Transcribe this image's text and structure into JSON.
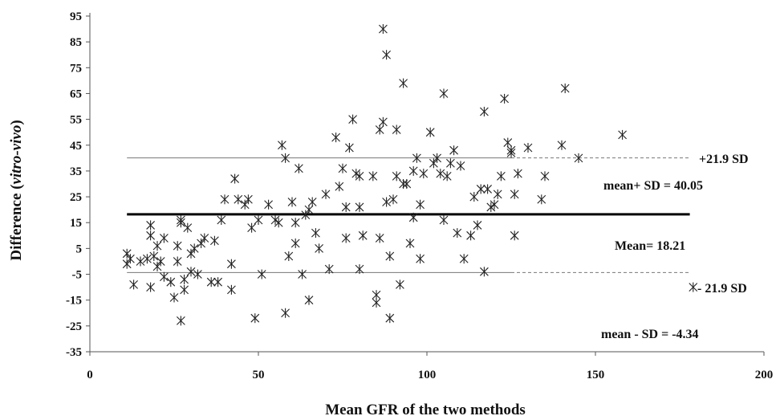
{
  "chart_data": {
    "type": "scatter",
    "title": "",
    "xlabel": "Mean GFR of the two methods",
    "ylabel_prefix": "Difference (",
    "ylabel_italic": "vitro-vivo",
    "ylabel_suffix": ")",
    "xlim": [
      0,
      200
    ],
    "ylim": [
      -35,
      95
    ],
    "xticks": [
      0,
      50,
      100,
      150,
      200
    ],
    "yticks": [
      95,
      85,
      75,
      65,
      55,
      45,
      35,
      25,
      15,
      5,
      -5,
      -15,
      -25,
      -35
    ],
    "grid": false,
    "legend": "none",
    "lines": [
      {
        "name": "upper",
        "y": 40.05,
        "x_from": 11,
        "x_solid_to": 125,
        "x_to": 178,
        "style": "thin"
      },
      {
        "name": "mean",
        "y": 18.21,
        "x_from": 11,
        "x_to": 178,
        "style": "bold"
      },
      {
        "name": "lower",
        "y": -4.34,
        "x_from": 11,
        "x_solid_to": 125,
        "x_to": 178,
        "style": "thin"
      }
    ],
    "annotations": {
      "upper_sd": "+21.9  SD",
      "upper_value": "mean+ SD = 40.05",
      "mean_value": "Mean= 18.21",
      "lower_sd": "- 21.9  SD",
      "lower_value": "mean - SD = -4.34"
    },
    "points": [
      [
        11,
        3
      ],
      [
        11,
        -1
      ],
      [
        12,
        1
      ],
      [
        13,
        -9
      ],
      [
        15,
        0
      ],
      [
        17,
        1
      ],
      [
        18,
        -10
      ],
      [
        18,
        14
      ],
      [
        18,
        10
      ],
      [
        19,
        2
      ],
      [
        20,
        6
      ],
      [
        20,
        -2
      ],
      [
        21,
        0
      ],
      [
        22,
        -6
      ],
      [
        22,
        9
      ],
      [
        24,
        -8
      ],
      [
        25,
        -14
      ],
      [
        26,
        0
      ],
      [
        26,
        6
      ],
      [
        27,
        -23
      ],
      [
        27,
        15
      ],
      [
        27,
        16
      ],
      [
        28,
        -7
      ],
      [
        28,
        -11
      ],
      [
        29,
        13
      ],
      [
        30,
        -4
      ],
      [
        30,
        3
      ],
      [
        31,
        5
      ],
      [
        32,
        -5
      ],
      [
        33,
        7
      ],
      [
        34,
        9
      ],
      [
        36,
        -8
      ],
      [
        37,
        8
      ],
      [
        38,
        -8
      ],
      [
        39,
        16
      ],
      [
        40,
        24
      ],
      [
        42,
        -1
      ],
      [
        42,
        -11
      ],
      [
        43,
        32
      ],
      [
        44,
        24
      ],
      [
        46,
        22
      ],
      [
        47,
        24
      ],
      [
        48,
        13
      ],
      [
        49,
        -22
      ],
      [
        50,
        16
      ],
      [
        51,
        -5
      ],
      [
        53,
        22
      ],
      [
        55,
        16
      ],
      [
        56,
        15
      ],
      [
        57,
        45
      ],
      [
        58,
        40
      ],
      [
        58,
        -20
      ],
      [
        59,
        2
      ],
      [
        60,
        23
      ],
      [
        61,
        15
      ],
      [
        61,
        7
      ],
      [
        62,
        36
      ],
      [
        63,
        -5
      ],
      [
        64,
        18
      ],
      [
        65,
        -15
      ],
      [
        65,
        20
      ],
      [
        66,
        23
      ],
      [
        67,
        11
      ],
      [
        68,
        5
      ],
      [
        70,
        26
      ],
      [
        71,
        -3
      ],
      [
        73,
        48
      ],
      [
        74,
        29
      ],
      [
        75,
        36
      ],
      [
        76,
        21
      ],
      [
        76,
        9
      ],
      [
        77,
        44
      ],
      [
        78,
        55
      ],
      [
        79,
        34
      ],
      [
        80,
        21
      ],
      [
        80,
        33
      ],
      [
        80,
        -3
      ],
      [
        81,
        10
      ],
      [
        84,
        33
      ],
      [
        85,
        -13
      ],
      [
        85,
        -16
      ],
      [
        86,
        51
      ],
      [
        86,
        9
      ],
      [
        87,
        90
      ],
      [
        87,
        54
      ],
      [
        88,
        80
      ],
      [
        88,
        23
      ],
      [
        89,
        -22
      ],
      [
        89,
        2
      ],
      [
        90,
        24
      ],
      [
        91,
        33
      ],
      [
        91,
        51
      ],
      [
        92,
        -9
      ],
      [
        93,
        69
      ],
      [
        93,
        30
      ],
      [
        94,
        30
      ],
      [
        95,
        7
      ],
      [
        96,
        17
      ],
      [
        96,
        35
      ],
      [
        97,
        40
      ],
      [
        98,
        1
      ],
      [
        98,
        22
      ],
      [
        99,
        34
      ],
      [
        101,
        50
      ],
      [
        102,
        38
      ],
      [
        103,
        40
      ],
      [
        104,
        34
      ],
      [
        105,
        65
      ],
      [
        105,
        16
      ],
      [
        106,
        33
      ],
      [
        107,
        38
      ],
      [
        108,
        43
      ],
      [
        109,
        11
      ],
      [
        110,
        37
      ],
      [
        111,
        1
      ],
      [
        113,
        10
      ],
      [
        114,
        25
      ],
      [
        115,
        14
      ],
      [
        116,
        28
      ],
      [
        117,
        58
      ],
      [
        117,
        -4
      ],
      [
        118,
        28
      ],
      [
        119,
        21
      ],
      [
        120,
        22
      ],
      [
        121,
        26
      ],
      [
        122,
        33
      ],
      [
        123,
        63
      ],
      [
        124,
        46
      ],
      [
        125,
        43
      ],
      [
        125,
        42
      ],
      [
        126,
        10
      ],
      [
        126,
        26
      ],
      [
        127,
        34
      ],
      [
        130,
        44
      ],
      [
        134,
        24
      ],
      [
        135,
        33
      ],
      [
        140,
        45
      ],
      [
        141,
        67
      ],
      [
        145,
        40
      ],
      [
        158,
        49
      ],
      [
        179,
        -10
      ]
    ]
  }
}
